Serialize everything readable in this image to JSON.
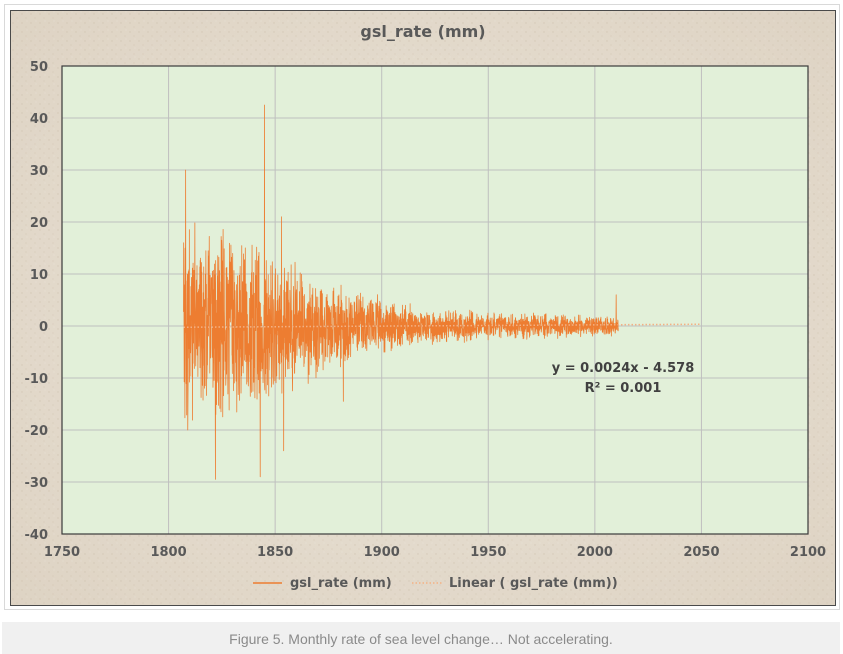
{
  "chart_data": {
    "type": "line",
    "title": "gsl_rate (mm)",
    "xlabel": "",
    "ylabel": "",
    "xlim": [
      1750,
      2100
    ],
    "ylim": [
      -40,
      50
    ],
    "x_ticks": [
      "1750",
      "1800",
      "1850",
      "1900",
      "1950",
      "2000",
      "2050",
      "2100"
    ],
    "y_ticks": [
      "50",
      "40",
      "30",
      "20",
      "10",
      "0",
      "-10",
      "-20",
      "-30",
      "-40"
    ],
    "grid": true,
    "legend_position": "bottom",
    "series": [
      {
        "name": "gsl_rate (mm)",
        "color": "#ed7d31",
        "x_range": [
          1807,
          2011
        ],
        "notable_points": [
          {
            "x": 1808,
            "y": 30
          },
          {
            "x": 1809,
            "y": -20
          },
          {
            "x": 1822,
            "y": -29.5
          },
          {
            "x": 1843,
            "y": -29
          },
          {
            "x": 1845,
            "y": 42.5
          },
          {
            "x": 1853,
            "y": 21
          },
          {
            "x": 1854,
            "y": -24
          },
          {
            "x": 1882,
            "y": -14.5
          },
          {
            "x": 2010,
            "y": 6
          }
        ],
        "amplitude_envelope": [
          {
            "x": 1807,
            "amp": 24
          },
          {
            "x": 1830,
            "amp": 20
          },
          {
            "x": 1860,
            "amp": 13
          },
          {
            "x": 1890,
            "amp": 7
          },
          {
            "x": 1920,
            "amp": 4
          },
          {
            "x": 1950,
            "amp": 3
          },
          {
            "x": 1980,
            "amp": 2.5
          },
          {
            "x": 2011,
            "amp": 2
          }
        ]
      },
      {
        "name": "Linear ( gsl_rate (mm))",
        "color": "#f4b183",
        "style": "dotted",
        "x": [
          1807,
          2050
        ],
        "y": [
          -0.24,
          0.34
        ]
      }
    ],
    "annotation": {
      "equation": "y = 0.0024x - 4.578",
      "r_squared": "R² = 0.001"
    },
    "colors": {
      "plot_background": "#e2f0d9",
      "frame_border": "#4a4a4a",
      "gridline": "#bfbfbf",
      "text": "#595959"
    }
  },
  "caption": "Figure 5. Monthly rate of sea level change… Not accelerating."
}
